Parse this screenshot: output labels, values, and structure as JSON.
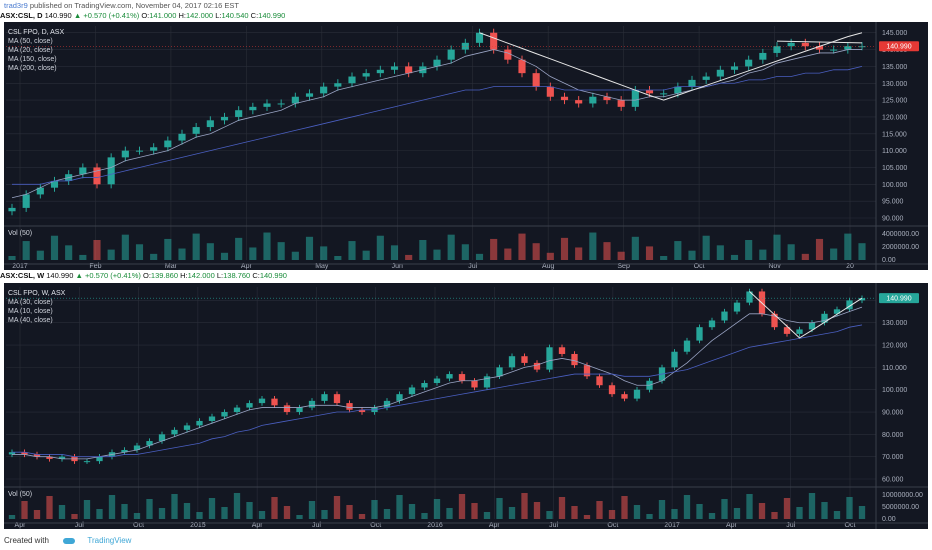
{
  "header": {
    "user": "trad3r9",
    "published": "published on TradingView.com, November 04, 2017 02:16 EST"
  },
  "quote_daily": {
    "symbol": "ASX:CSL, D",
    "price": "140.990",
    "change": "+0.570 (+0.41%)",
    "o_label": "O:",
    "o": "141.000",
    "h_label": "H:",
    "h": "142.000",
    "l_label": "L:",
    "l": "140.540",
    "c_label": "C:",
    "c": "140.990"
  },
  "quote_weekly": {
    "symbol": "ASX:CSL, W",
    "price": "140.990",
    "change": "+0.570 (+0.41%)",
    "o_label": "O:",
    "o": "139.860",
    "h_label": "H:",
    "h": "142.000",
    "l_label": "L:",
    "l": "138.760",
    "c_label": "C:",
    "c": "140.990"
  },
  "footer": {
    "created": "Created with",
    "brand": "TradingView"
  },
  "colors": {
    "bg": "#131722",
    "grid": "#2a2e39",
    "up": "#26a69a",
    "down": "#ef5350",
    "ma": "#9aa4c4",
    "ma_blue": "#4a5fc1",
    "pattern": "#e6e6e6",
    "label_red": "#e53935",
    "label_green": "#26a69a"
  },
  "chart_data": [
    {
      "type": "line",
      "title": "CSL FPO, D, ASX",
      "legend": [
        "MA (50, close)",
        "MA (20, close)",
        "MA (150, close)",
        "MA (200, close)"
      ],
      "x_ticks": [
        "2017",
        "Feb",
        "Mar",
        "Apr",
        "May",
        "Jun",
        "Jul",
        "Aug",
        "Sep",
        "Oct",
        "Nov",
        "20"
      ],
      "y_ticks": [
        "90.000",
        "95.000",
        "100.000",
        "105.000",
        "110.000",
        "115.000",
        "120.000",
        "125.000",
        "130.000",
        "135.000",
        "140.000",
        "145.000"
      ],
      "ylim": [
        90,
        147
      ],
      "last_price_label": "140.990",
      "close": [
        93,
        97,
        99,
        101,
        103,
        105,
        100,
        108,
        110,
        110,
        111,
        113,
        115,
        117,
        119,
        120,
        122,
        123,
        124,
        124,
        126,
        127,
        129,
        130,
        132,
        133,
        134,
        135,
        133,
        135,
        137,
        140,
        142,
        145,
        140,
        137,
        133,
        129,
        126,
        125,
        124,
        126,
        125,
        123,
        128,
        127,
        127,
        129,
        131,
        132,
        134,
        135,
        137,
        139,
        141,
        142,
        141,
        140,
        140,
        141,
        141
      ],
      "ma_fast": [
        96,
        97,
        99,
        101,
        102,
        103,
        104,
        105,
        107,
        108,
        109,
        110,
        112,
        114,
        115,
        117,
        119,
        120,
        121,
        122,
        124,
        125,
        126,
        128,
        129,
        130,
        131,
        132,
        133,
        134,
        135,
        136,
        138,
        139,
        140,
        139,
        137,
        135,
        132,
        130,
        128,
        127,
        126,
        125,
        125,
        126,
        126,
        127,
        128,
        129,
        130,
        131,
        133,
        134,
        136,
        137,
        138,
        139,
        139,
        140,
        140
      ],
      "ma_slow": [
        100,
        100,
        100,
        101,
        101,
        102,
        102,
        103,
        104,
        105,
        106,
        107,
        108,
        109,
        110,
        111,
        112,
        113,
        114,
        115,
        116,
        117,
        118,
        119,
        120,
        121,
        122,
        123,
        124,
        125,
        126,
        127,
        128,
        128,
        129,
        129,
        129,
        129,
        129,
        128,
        128,
        128,
        128,
        128,
        128,
        128,
        128,
        129,
        129,
        129,
        130,
        130,
        131,
        131,
        132,
        132,
        133,
        133,
        134,
        134,
        135
      ],
      "volume_label": "Vol (50)",
      "volume_ticks": [
        "0.00",
        "2000000.00",
        "4000000.00"
      ]
    },
    {
      "type": "line",
      "title": "CSL FPO, W, ASX",
      "legend": [
        "MA (30, close)",
        "MA (10, close)",
        "MA (40, close)"
      ],
      "x_ticks": [
        "Apr",
        "Jul",
        "Oct",
        "2015",
        "Apr",
        "Jul",
        "Oct",
        "2016",
        "Apr",
        "Jul",
        "Oct",
        "2017",
        "Apr",
        "Jul",
        "Oct"
      ],
      "y_ticks": [
        "60.000",
        "70.000",
        "80.000",
        "90.000",
        "100.000",
        "110.000",
        "120.000",
        "130.000",
        "140.000"
      ],
      "ylim": [
        60,
        146
      ],
      "last_price_label": "140.990",
      "close": [
        72,
        71,
        70,
        69,
        70,
        68,
        68,
        70,
        72,
        73,
        75,
        77,
        80,
        82,
        84,
        86,
        88,
        90,
        92,
        94,
        96,
        93,
        90,
        92,
        95,
        98,
        94,
        91,
        90,
        92,
        95,
        98,
        101,
        103,
        105,
        107,
        104,
        101,
        106,
        110,
        115,
        112,
        109,
        119,
        116,
        111,
        106,
        102,
        98,
        96,
        100,
        104,
        110,
        117,
        122,
        128,
        131,
        135,
        139,
        144,
        134,
        128,
        125,
        127,
        130,
        134,
        136,
        140,
        141
      ],
      "ma_fast": [
        71,
        71,
        70,
        70,
        69,
        69,
        69,
        70,
        71,
        72,
        73,
        75,
        77,
        79,
        81,
        83,
        85,
        87,
        89,
        91,
        92,
        92,
        92,
        92,
        93,
        93,
        93,
        92,
        92,
        92,
        93,
        95,
        97,
        99,
        101,
        103,
        104,
        104,
        105,
        106,
        108,
        110,
        111,
        113,
        114,
        113,
        111,
        109,
        107,
        104,
        102,
        102,
        104,
        108,
        112,
        117,
        122,
        126,
        130,
        134,
        134,
        133,
        131,
        130,
        130,
        131,
        133,
        135,
        137
      ],
      "ma_slow": [
        72,
        72,
        71,
        71,
        71,
        70,
        70,
        70,
        70,
        71,
        71,
        72,
        73,
        74,
        75,
        76,
        78,
        79,
        81,
        82,
        84,
        85,
        86,
        87,
        88,
        89,
        90,
        90,
        91,
        91,
        92,
        93,
        94,
        95,
        96,
        97,
        98,
        99,
        100,
        101,
        102,
        103,
        104,
        105,
        106,
        107,
        107,
        107,
        107,
        106,
        106,
        106,
        107,
        108,
        109,
        111,
        113,
        115,
        117,
        119,
        120,
        121,
        122,
        123,
        124,
        125,
        126,
        128,
        129
      ],
      "volume_label": "Vol (50)",
      "volume_ticks": [
        "0.00",
        "5000000.00",
        "10000000.00"
      ]
    }
  ]
}
